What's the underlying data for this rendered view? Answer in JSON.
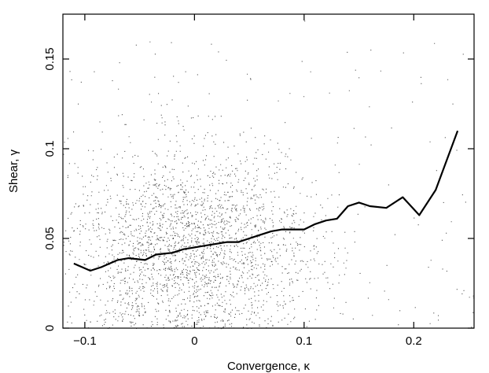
{
  "chart_data": {
    "type": "scatter",
    "title": "",
    "xlabel": "Convergence, κ",
    "ylabel": "Shear, γ",
    "xlim": [
      -0.12,
      0.255
    ],
    "ylim": [
      0,
      0.175
    ],
    "x_ticks": [
      -0.1,
      0,
      0.1,
      0.2
    ],
    "x_tick_labels": [
      "−0.1",
      "0",
      "0.1",
      "0.2"
    ],
    "y_ticks": [
      0,
      0.05,
      0.1,
      0.15
    ],
    "y_tick_labels": [
      "0",
      "0.05",
      "0.1",
      "0.15"
    ],
    "grid": false,
    "scatter_cloud": {
      "center_x": -0.005,
      "center_y": 0.045,
      "count": 3200,
      "x_spread": 0.055,
      "y_spread": 0.022,
      "color": "#555555"
    },
    "series": [
      {
        "kind": "line",
        "color": "#000000",
        "x": [
          -0.11,
          -0.095,
          -0.085,
          -0.07,
          -0.06,
          -0.045,
          -0.035,
          -0.02,
          -0.01,
          0.0,
          0.01,
          0.02,
          0.03,
          0.04,
          0.05,
          0.06,
          0.07,
          0.08,
          0.09,
          0.1,
          0.11,
          0.12,
          0.13,
          0.14,
          0.15,
          0.16,
          0.175,
          0.19,
          0.205,
          0.22,
          0.24
        ],
        "y": [
          0.036,
          0.032,
          0.034,
          0.038,
          0.039,
          0.038,
          0.041,
          0.042,
          0.044,
          0.045,
          0.046,
          0.047,
          0.048,
          0.048,
          0.05,
          0.052,
          0.054,
          0.055,
          0.055,
          0.055,
          0.058,
          0.06,
          0.061,
          0.068,
          0.07,
          0.068,
          0.067,
          0.073,
          0.063,
          0.077,
          0.11
        ]
      }
    ]
  }
}
